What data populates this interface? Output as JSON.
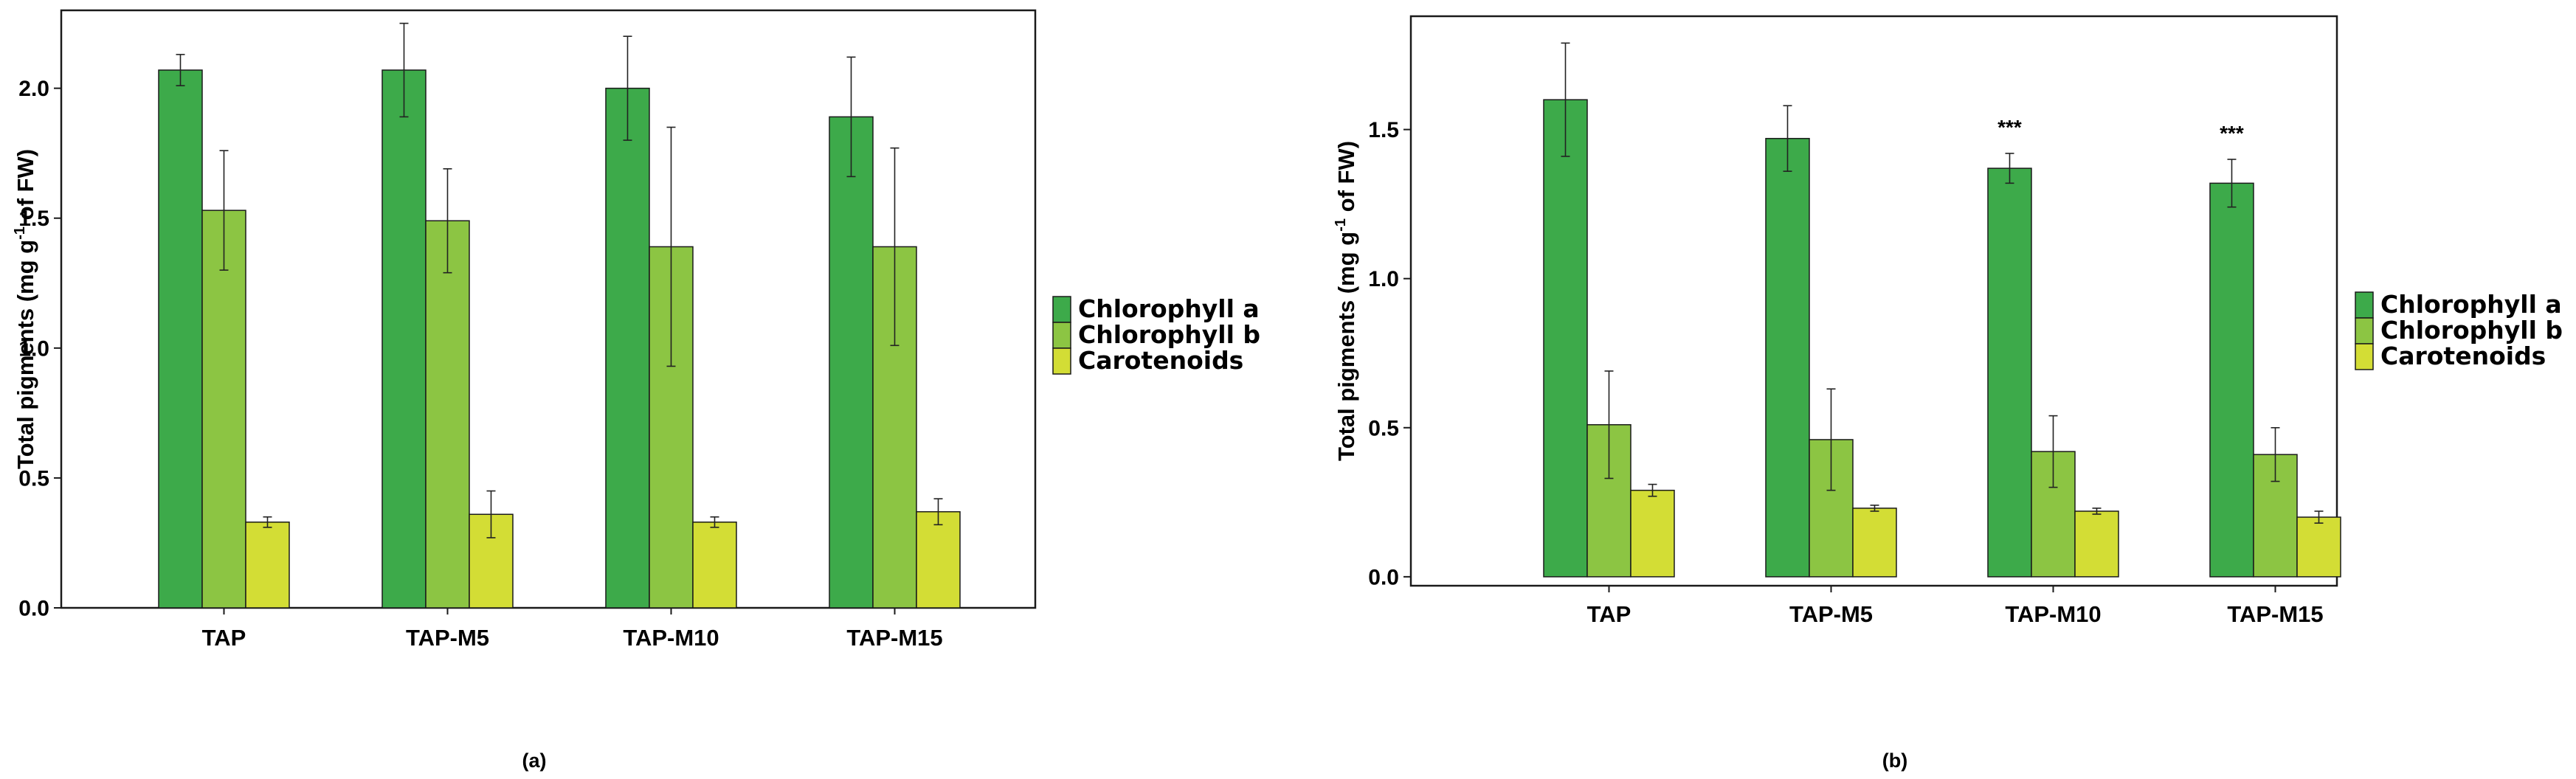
{
  "legend": {
    "items": [
      {
        "label": "Chlorophyll a",
        "color": "#3daa4a"
      },
      {
        "label": "Chlorophyll b",
        "color": "#8cc543"
      },
      {
        "label": "Carotenoids",
        "color": "#d3dd35"
      }
    ]
  },
  "chart_data": [
    {
      "type": "bar",
      "panel_label": "(a)",
      "title": "",
      "xlabel": "",
      "ylabel": "Total pigments (mg g-1 of FW)",
      "ylabel_parts": {
        "before": "Total pigments (mg g",
        "sup": "-1",
        "after": " of FW)"
      },
      "ylim": [
        0,
        2.3
      ],
      "yticks": [
        0.0,
        0.5,
        1.0,
        1.5,
        2.0
      ],
      "ytick_labels": [
        "0.0",
        "0.5",
        "1.0",
        "1.5",
        "2.0"
      ],
      "categories": [
        "TAP",
        "TAP-M5",
        "TAP-M10",
        "TAP-M15"
      ],
      "series": [
        {
          "name": "Chlorophyll a",
          "values": [
            2.07,
            2.07,
            2.0,
            1.89
          ],
          "errors": [
            0.06,
            0.18,
            0.2,
            0.23
          ]
        },
        {
          "name": "Chlorophyll b",
          "values": [
            1.53,
            1.49,
            1.39,
            1.39
          ],
          "errors": [
            0.23,
            0.2,
            0.46,
            0.38
          ]
        },
        {
          "name": "Carotenoids",
          "values": [
            0.33,
            0.36,
            0.33,
            0.37
          ],
          "errors": [
            0.02,
            0.09,
            0.02,
            0.05
          ]
        }
      ],
      "annotations": [],
      "legend": "right",
      "grid": false
    },
    {
      "type": "bar",
      "panel_label": "(b)",
      "title": "",
      "xlabel": "",
      "ylabel": "Total pigments (mg g-1 of FW)",
      "ylabel_parts": {
        "before": "Total pigments (mg g",
        "sup": "-1",
        "after": " of FW)"
      },
      "ylim": [
        -0.03,
        1.88
      ],
      "yticks": [
        0.0,
        0.5,
        1.0,
        1.5
      ],
      "ytick_labels": [
        "0.0",
        "0.5",
        "1.0",
        "1.5"
      ],
      "categories": [
        "TAP",
        "TAP-M5",
        "TAP-M10",
        "TAP-M15"
      ],
      "series": [
        {
          "name": "Chlorophyll a",
          "values": [
            1.6,
            1.47,
            1.37,
            1.32
          ],
          "errors": [
            0.19,
            0.11,
            0.05,
            0.08
          ]
        },
        {
          "name": "Chlorophyll b",
          "values": [
            0.51,
            0.46,
            0.42,
            0.41
          ],
          "errors": [
            0.18,
            0.17,
            0.12,
            0.09
          ]
        },
        {
          "name": "Carotenoids",
          "values": [
            0.29,
            0.23,
            0.22,
            0.2
          ],
          "errors": [
            0.02,
            0.01,
            0.01,
            0.02
          ]
        }
      ],
      "annotations": [
        {
          "category": "TAP-M10",
          "series": "Chlorophyll a",
          "text": "***"
        },
        {
          "category": "TAP-M15",
          "series": "Chlorophyll a",
          "text": "***"
        }
      ],
      "legend": "right",
      "grid": false
    }
  ]
}
